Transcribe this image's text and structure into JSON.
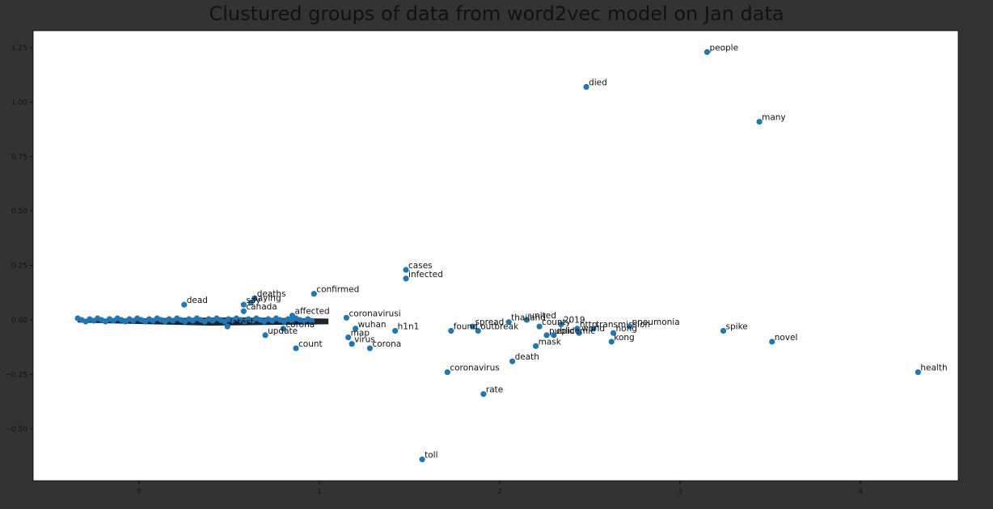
{
  "chart_data": {
    "type": "scatter",
    "title": "Clustured groups of data from word2vec model on Jan data",
    "xlabel": "",
    "ylabel": "",
    "xlim": [
      -0.6,
      4.55
    ],
    "ylim": [
      -0.7,
      1.32
    ],
    "xticks": [
      0,
      1,
      2,
      3,
      4
    ],
    "yticks": [
      -0.5,
      -0.25,
      0.0,
      0.25,
      0.5,
      0.75,
      1.0,
      1.25
    ],
    "xtick_labels": [
      "0",
      "1",
      "2",
      "3",
      "4"
    ],
    "ytick_labels": [
      "−0.50",
      "−0.25",
      "0.00",
      "0.25",
      "0.50",
      "0.75",
      "1.00",
      "1.25"
    ],
    "grid": false,
    "marker_color": "#1f77b4",
    "background": "#333333",
    "plot_background": "#ffffff",
    "points": [
      {
        "x": 3.15,
        "y": 1.23,
        "label": "people"
      },
      {
        "x": 2.48,
        "y": 1.07,
        "label": "died"
      },
      {
        "x": 3.44,
        "y": 0.91,
        "label": "many"
      },
      {
        "x": 1.48,
        "y": 0.23,
        "label": "cases"
      },
      {
        "x": 1.48,
        "y": 0.19,
        "label": "infected"
      },
      {
        "x": 0.97,
        "y": 0.12,
        "label": "confirmed"
      },
      {
        "x": 0.64,
        "y": 0.1,
        "label": "deaths"
      },
      {
        "x": 0.62,
        "y": 0.08,
        "label": "saying"
      },
      {
        "x": 0.58,
        "y": 0.07,
        "label": "say"
      },
      {
        "x": 0.25,
        "y": 0.07,
        "label": "dead"
      },
      {
        "x": 0.58,
        "y": 0.04,
        "label": "canada"
      },
      {
        "x": 0.85,
        "y": 0.02,
        "label": "affected"
      },
      {
        "x": 1.15,
        "y": 0.01,
        "label": "coronavirusi"
      },
      {
        "x": 2.15,
        "y": 0.0,
        "label": "united"
      },
      {
        "x": 2.05,
        "y": -0.01,
        "label": "thailand"
      },
      {
        "x": 2.34,
        "y": -0.02,
        "label": "2019"
      },
      {
        "x": 2.22,
        "y": -0.03,
        "label": "county"
      },
      {
        "x": 1.85,
        "y": -0.03,
        "label": "spread"
      },
      {
        "x": 0.49,
        "y": -0.03,
        "label": "latest"
      },
      {
        "x": 0.8,
        "y": -0.04,
        "label": "corona"
      },
      {
        "x": 1.2,
        "y": -0.04,
        "label": "wuhan"
      },
      {
        "x": 1.42,
        "y": -0.05,
        "label": "h1n1"
      },
      {
        "x": 1.88,
        "y": -0.05,
        "label": "outbreak"
      },
      {
        "x": 1.73,
        "y": -0.05,
        "label": "found"
      },
      {
        "x": 2.43,
        "y": -0.04,
        "label": "http"
      },
      {
        "x": 2.52,
        "y": -0.04,
        "label": "transmission"
      },
      {
        "x": 2.72,
        "y": -0.03,
        "label": "pneumonia"
      },
      {
        "x": 2.63,
        "y": -0.06,
        "label": "hong"
      },
      {
        "x": 2.44,
        "y": -0.06,
        "label": "world"
      },
      {
        "x": 2.26,
        "y": -0.07,
        "label": "public"
      },
      {
        "x": 2.3,
        "y": -0.07,
        "label": "epidemic"
      },
      {
        "x": 0.7,
        "y": -0.07,
        "label": "update"
      },
      {
        "x": 1.16,
        "y": -0.08,
        "label": "map"
      },
      {
        "x": 1.18,
        "y": -0.11,
        "label": "virus"
      },
      {
        "x": 2.62,
        "y": -0.1,
        "label": "kong"
      },
      {
        "x": 3.24,
        "y": -0.05,
        "label": "spike"
      },
      {
        "x": 3.51,
        "y": -0.1,
        "label": "novel"
      },
      {
        "x": 2.2,
        "y": -0.12,
        "label": "mask"
      },
      {
        "x": 0.87,
        "y": -0.13,
        "label": "count"
      },
      {
        "x": 1.28,
        "y": -0.13,
        "label": "corona"
      },
      {
        "x": 2.07,
        "y": -0.19,
        "label": "death"
      },
      {
        "x": 1.71,
        "y": -0.24,
        "label": "coronavirus"
      },
      {
        "x": 4.32,
        "y": -0.24,
        "label": "health"
      },
      {
        "x": 1.91,
        "y": -0.34,
        "label": "rate"
      },
      {
        "x": 1.57,
        "y": -0.64,
        "label": "toll"
      }
    ]
  }
}
